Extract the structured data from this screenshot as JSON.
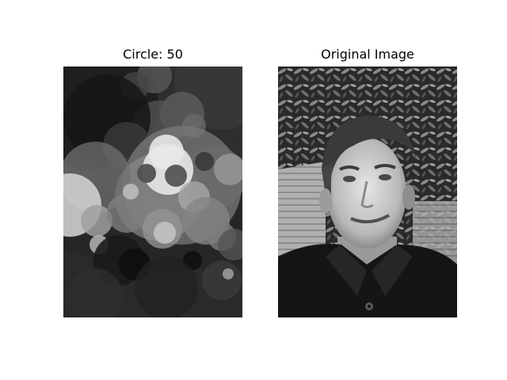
{
  "figure": {
    "panels": [
      {
        "title": "Circle: 50"
      },
      {
        "title": "Original Image"
      }
    ]
  }
}
